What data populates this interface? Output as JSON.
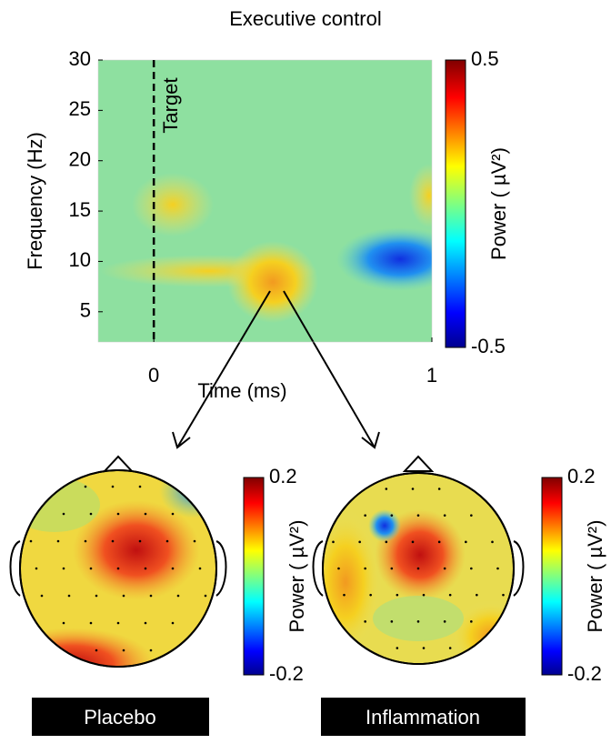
{
  "chart_data": [
    {
      "type": "heatmap",
      "title": "Executive control",
      "xlabel": "Time (ms)",
      "ylabel": "Frequency (Hz)",
      "xlim": [
        -0.2,
        1
      ],
      "ylim": [
        2,
        30
      ],
      "xticks": [
        0,
        1
      ],
      "yticks": [
        5,
        10,
        15,
        20,
        25,
        30
      ],
      "annotation": "Target",
      "annotation_x": 0,
      "colorbar": {
        "label": "Power ( µV²)",
        "clim": [
          -0.5,
          0.5
        ],
        "ticks": [
          -0.5,
          0.5
        ]
      }
    },
    {
      "type": "topoplot",
      "title": "Placebo",
      "colorbar": {
        "label": "Power ( µV²)",
        "clim": [
          -0.2,
          0.2
        ],
        "ticks": [
          -0.2,
          0.2
        ]
      }
    },
    {
      "type": "topoplot",
      "title": "Inflammation",
      "colorbar": {
        "label": "Power ( µV²)",
        "clim": [
          -0.2,
          0.2
        ],
        "ticks": [
          -0.2,
          0.2
        ]
      }
    }
  ]
}
